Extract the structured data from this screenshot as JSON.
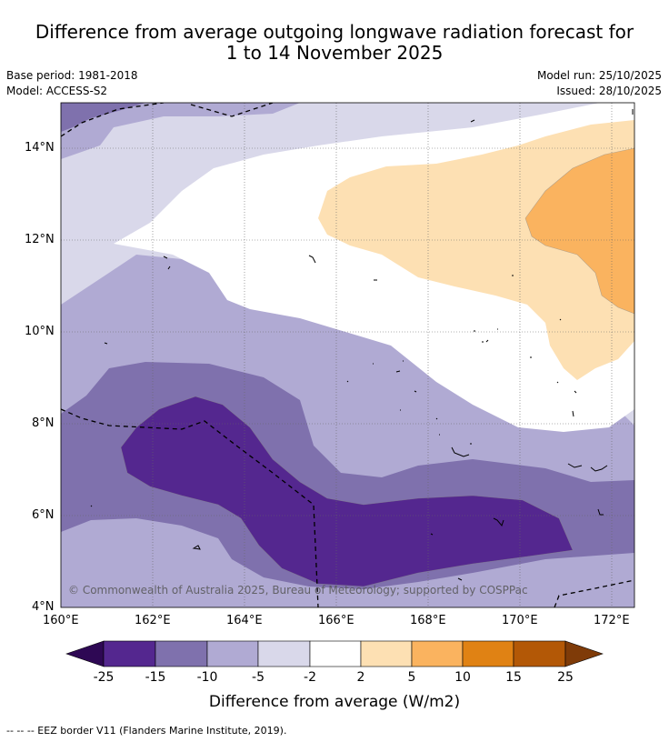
{
  "title_line1": "Difference from average outgoing longwave radiation forecast for",
  "title_line2": "1 to 14 November 2025",
  "base_period": "Base period: 1981-2018",
  "model": "Model: ACCESS-S2",
  "model_run": "Model run: 25/10/2025",
  "issued": "Issued: 28/10/2025",
  "lat_labels": [
    "14°N",
    "12°N",
    "10°N",
    "8°N",
    "6°N",
    "4°N"
  ],
  "lon_labels": [
    "160°E",
    "162°E",
    "164°E",
    "166°E",
    "168°E",
    "170°E",
    "172°E"
  ],
  "copyright": "© Commonwealth of Australia 2025, Bureau of Meteorology; supported by COSPPac",
  "colorbar": {
    "ticks": [
      "-25",
      "-15",
      "-10",
      "-5",
      "-2",
      "2",
      "5",
      "10",
      "15",
      "25"
    ],
    "colors": [
      "#2e0854",
      "#54278f",
      "#7f71ad",
      "#b0aad3",
      "#d9d8ea",
      "#ffffff",
      "#fde0b3",
      "#fab35f",
      "#e08214",
      "#b35806",
      "#7f3b08"
    ],
    "label": "Difference from average (W/m2)"
  },
  "footnote": "--  --  -- EEZ border V11 (Flanders Marine Institute, 2019)."
}
